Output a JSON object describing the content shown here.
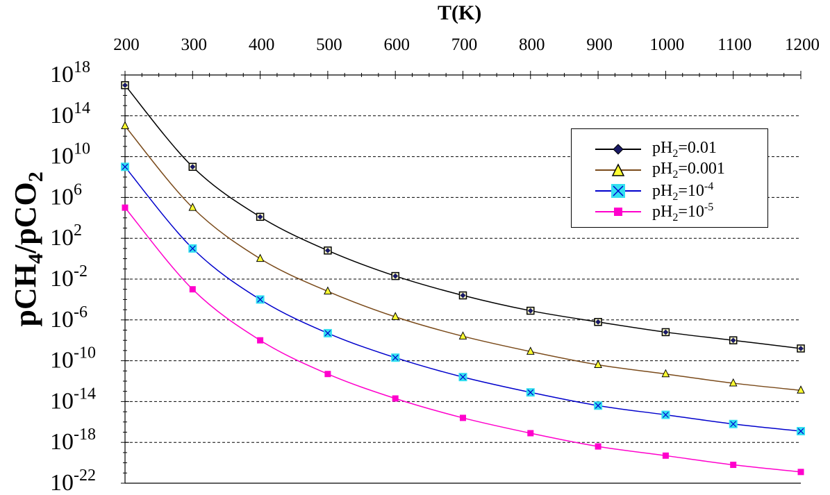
{
  "chart_data": {
    "type": "line",
    "title": "",
    "xlabel": "T(K)",
    "ylabel_main": "pCH",
    "ylabel_sub1": "4",
    "ylabel_mid": "/pCO",
    "ylabel_sub2": "2",
    "xlim": [
      200,
      1200
    ],
    "ylim_log10": [
      -22,
      18
    ],
    "y_scale": "log",
    "x_axis_position": "top",
    "grid": "horizontal dashed",
    "legend_position": "top-right",
    "x_ticks": [
      200,
      300,
      400,
      500,
      600,
      700,
      800,
      900,
      1000,
      1100,
      1200
    ],
    "y_ticks_log10": [
      -22,
      -18,
      -14,
      -10,
      -6,
      -2,
      2,
      6,
      10,
      14,
      18
    ],
    "x": [
      200,
      300,
      400,
      500,
      600,
      700,
      800,
      900,
      1000,
      1100,
      1200
    ],
    "series": [
      {
        "name_prefix": "pH",
        "name_sub": "2",
        "name_suffix": "=0.01",
        "name_sup": "",
        "color": "#000000",
        "marker": "diamond",
        "marker_fill": "#1a1a66",
        "values_log10": [
          17.0,
          9.0,
          4.1,
          0.8,
          -1.7,
          -3.6,
          -5.1,
          -6.2,
          -7.2,
          -8.0,
          -8.8
        ]
      },
      {
        "name_prefix": "pH",
        "name_sub": "2",
        "name_suffix": "=0.001",
        "name_sup": "",
        "color": "#7a4a1a",
        "marker": "triangle",
        "marker_fill": "#ffff33",
        "values_log10": [
          13.0,
          5.0,
          0.0,
          -3.2,
          -5.7,
          -7.6,
          -9.1,
          -10.4,
          -11.3,
          -12.2,
          -12.9
        ]
      },
      {
        "name_prefix": "pH",
        "name_sub": "2",
        "name_suffix": "=10",
        "name_sup": "-4",
        "color": "#0000cc",
        "marker": "x-square",
        "marker_fill": "#33e0f0",
        "values_log10": [
          9.0,
          1.0,
          -4.0,
          -7.3,
          -9.7,
          -11.6,
          -13.1,
          -14.4,
          -15.3,
          -16.2,
          -16.9
        ]
      },
      {
        "name_prefix": "pH",
        "name_sub": "2",
        "name_suffix": "=10",
        "name_sup": "-5",
        "color": "#ff00cc",
        "marker": "square",
        "marker_fill": "#ff00cc",
        "values_log10": [
          5.0,
          -3.0,
          -8.0,
          -11.3,
          -13.7,
          -15.6,
          -17.1,
          -18.4,
          -19.3,
          -20.2,
          -20.9
        ]
      }
    ]
  }
}
